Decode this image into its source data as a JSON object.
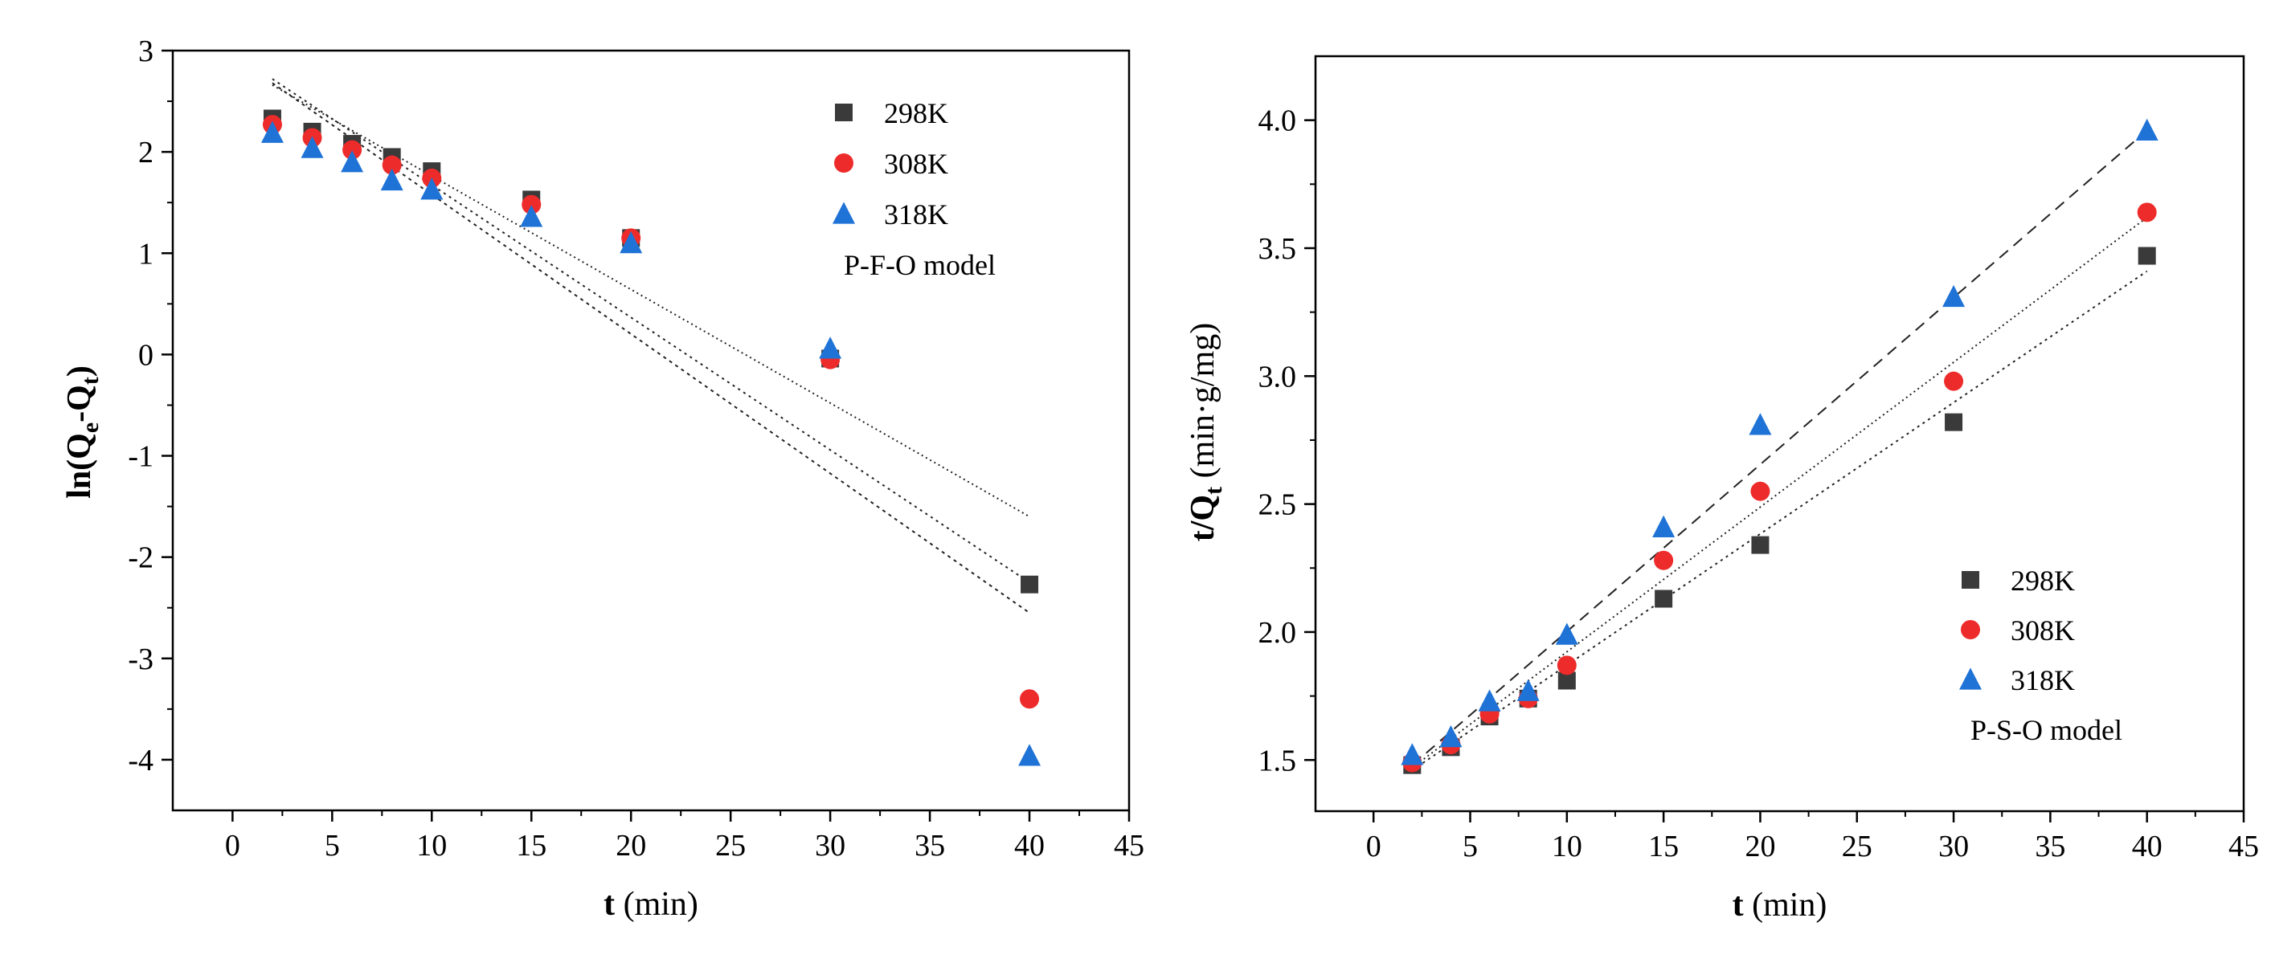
{
  "chart_data": [
    {
      "type": "scatter",
      "panel": "left",
      "title": "",
      "xlabel": {
        "var": "t",
        "unit": " (min)"
      },
      "ylabel": {
        "pre": "ln(Q",
        "sub1": "e",
        "mid": "-Q",
        "sub2": "t",
        "post": ")"
      },
      "xlim": [
        -3,
        45
      ],
      "ylim": [
        -4.5,
        3
      ],
      "xticks": [
        0,
        5,
        10,
        15,
        20,
        25,
        30,
        35,
        40,
        45
      ],
      "yticks": [
        -4,
        -3,
        -2,
        -1,
        0,
        1,
        2,
        3
      ],
      "grid": false,
      "legend_position": "top-right",
      "model_label": "P-F-O model",
      "series": [
        {
          "name": "298K",
          "marker": "square",
          "color": "#3a3a3a",
          "x": [
            2,
            4,
            6,
            8,
            10,
            15,
            20,
            30,
            40
          ],
          "y": [
            2.33,
            2.2,
            2.08,
            1.95,
            1.81,
            1.53,
            1.15,
            -0.04,
            -2.27
          ],
          "fit": {
            "x": [
              2,
              40
            ],
            "y": [
              2.72,
              -2.25
            ],
            "dash": "3,5"
          }
        },
        {
          "name": "308K",
          "marker": "circle",
          "color": "#ee2b2b",
          "x": [
            2,
            4,
            6,
            8,
            10,
            15,
            20,
            30,
            40
          ],
          "y": [
            2.27,
            2.14,
            2.02,
            1.87,
            1.74,
            1.48,
            1.15,
            -0.05,
            -3.4
          ],
          "fit": {
            "x": [
              2,
              40
            ],
            "y": [
              2.66,
              -1.6
            ],
            "dash": "2,4"
          }
        },
        {
          "name": "318K",
          "marker": "triangle",
          "color": "#1f73d6",
          "x": [
            2,
            4,
            6,
            8,
            10,
            15,
            20,
            30,
            40
          ],
          "y": [
            2.19,
            2.04,
            1.9,
            1.72,
            1.63,
            1.36,
            1.1,
            0.06,
            -3.96
          ],
          "fit": {
            "x": [
              2,
              40
            ],
            "y": [
              2.68,
              -2.55
            ],
            "dash": "4,5"
          }
        }
      ]
    },
    {
      "type": "scatter",
      "panel": "right",
      "title": "",
      "xlabel": {
        "var": "t",
        "unit": " (min)"
      },
      "ylabel": {
        "pre": "t/Q",
        "sub1": "t",
        "post": " (min·g/mg)"
      },
      "xlim": [
        -3,
        45
      ],
      "ylim": [
        1.3,
        4.25
      ],
      "xticks": [
        0,
        5,
        10,
        15,
        20,
        25,
        30,
        35,
        40,
        45
      ],
      "yticks": [
        1.5,
        2.0,
        2.5,
        3.0,
        3.5,
        4.0
      ],
      "grid": false,
      "legend_position": "bottom-right",
      "model_label": "P-S-O model",
      "series": [
        {
          "name": "298K",
          "marker": "square",
          "color": "#3a3a3a",
          "x": [
            2,
            4,
            6,
            8,
            10,
            15,
            20,
            30,
            40
          ],
          "y": [
            1.48,
            1.55,
            1.67,
            1.74,
            1.81,
            2.13,
            2.34,
            2.82,
            3.47
          ],
          "fit": {
            "x": [
              2,
              40
            ],
            "y": [
              1.46,
              3.41
            ],
            "dash": "3,5"
          }
        },
        {
          "name": "308K",
          "marker": "circle",
          "color": "#ee2b2b",
          "x": [
            2,
            4,
            6,
            8,
            10,
            15,
            20,
            30,
            40
          ],
          "y": [
            1.49,
            1.56,
            1.68,
            1.74,
            1.87,
            2.28,
            2.55,
            2.98,
            3.64
          ],
          "fit": {
            "x": [
              2,
              40
            ],
            "y": [
              1.47,
              3.62
            ],
            "dash": "2,4"
          }
        },
        {
          "name": "318K",
          "marker": "triangle",
          "color": "#1f73d6",
          "x": [
            2,
            4,
            6,
            8,
            10,
            15,
            20,
            30,
            40
          ],
          "y": [
            1.52,
            1.59,
            1.73,
            1.77,
            1.99,
            2.41,
            2.81,
            3.31,
            3.96
          ],
          "fit": {
            "x": [
              2,
              40
            ],
            "y": [
              1.48,
              3.96
            ],
            "dash": "14,9"
          }
        }
      ]
    }
  ]
}
